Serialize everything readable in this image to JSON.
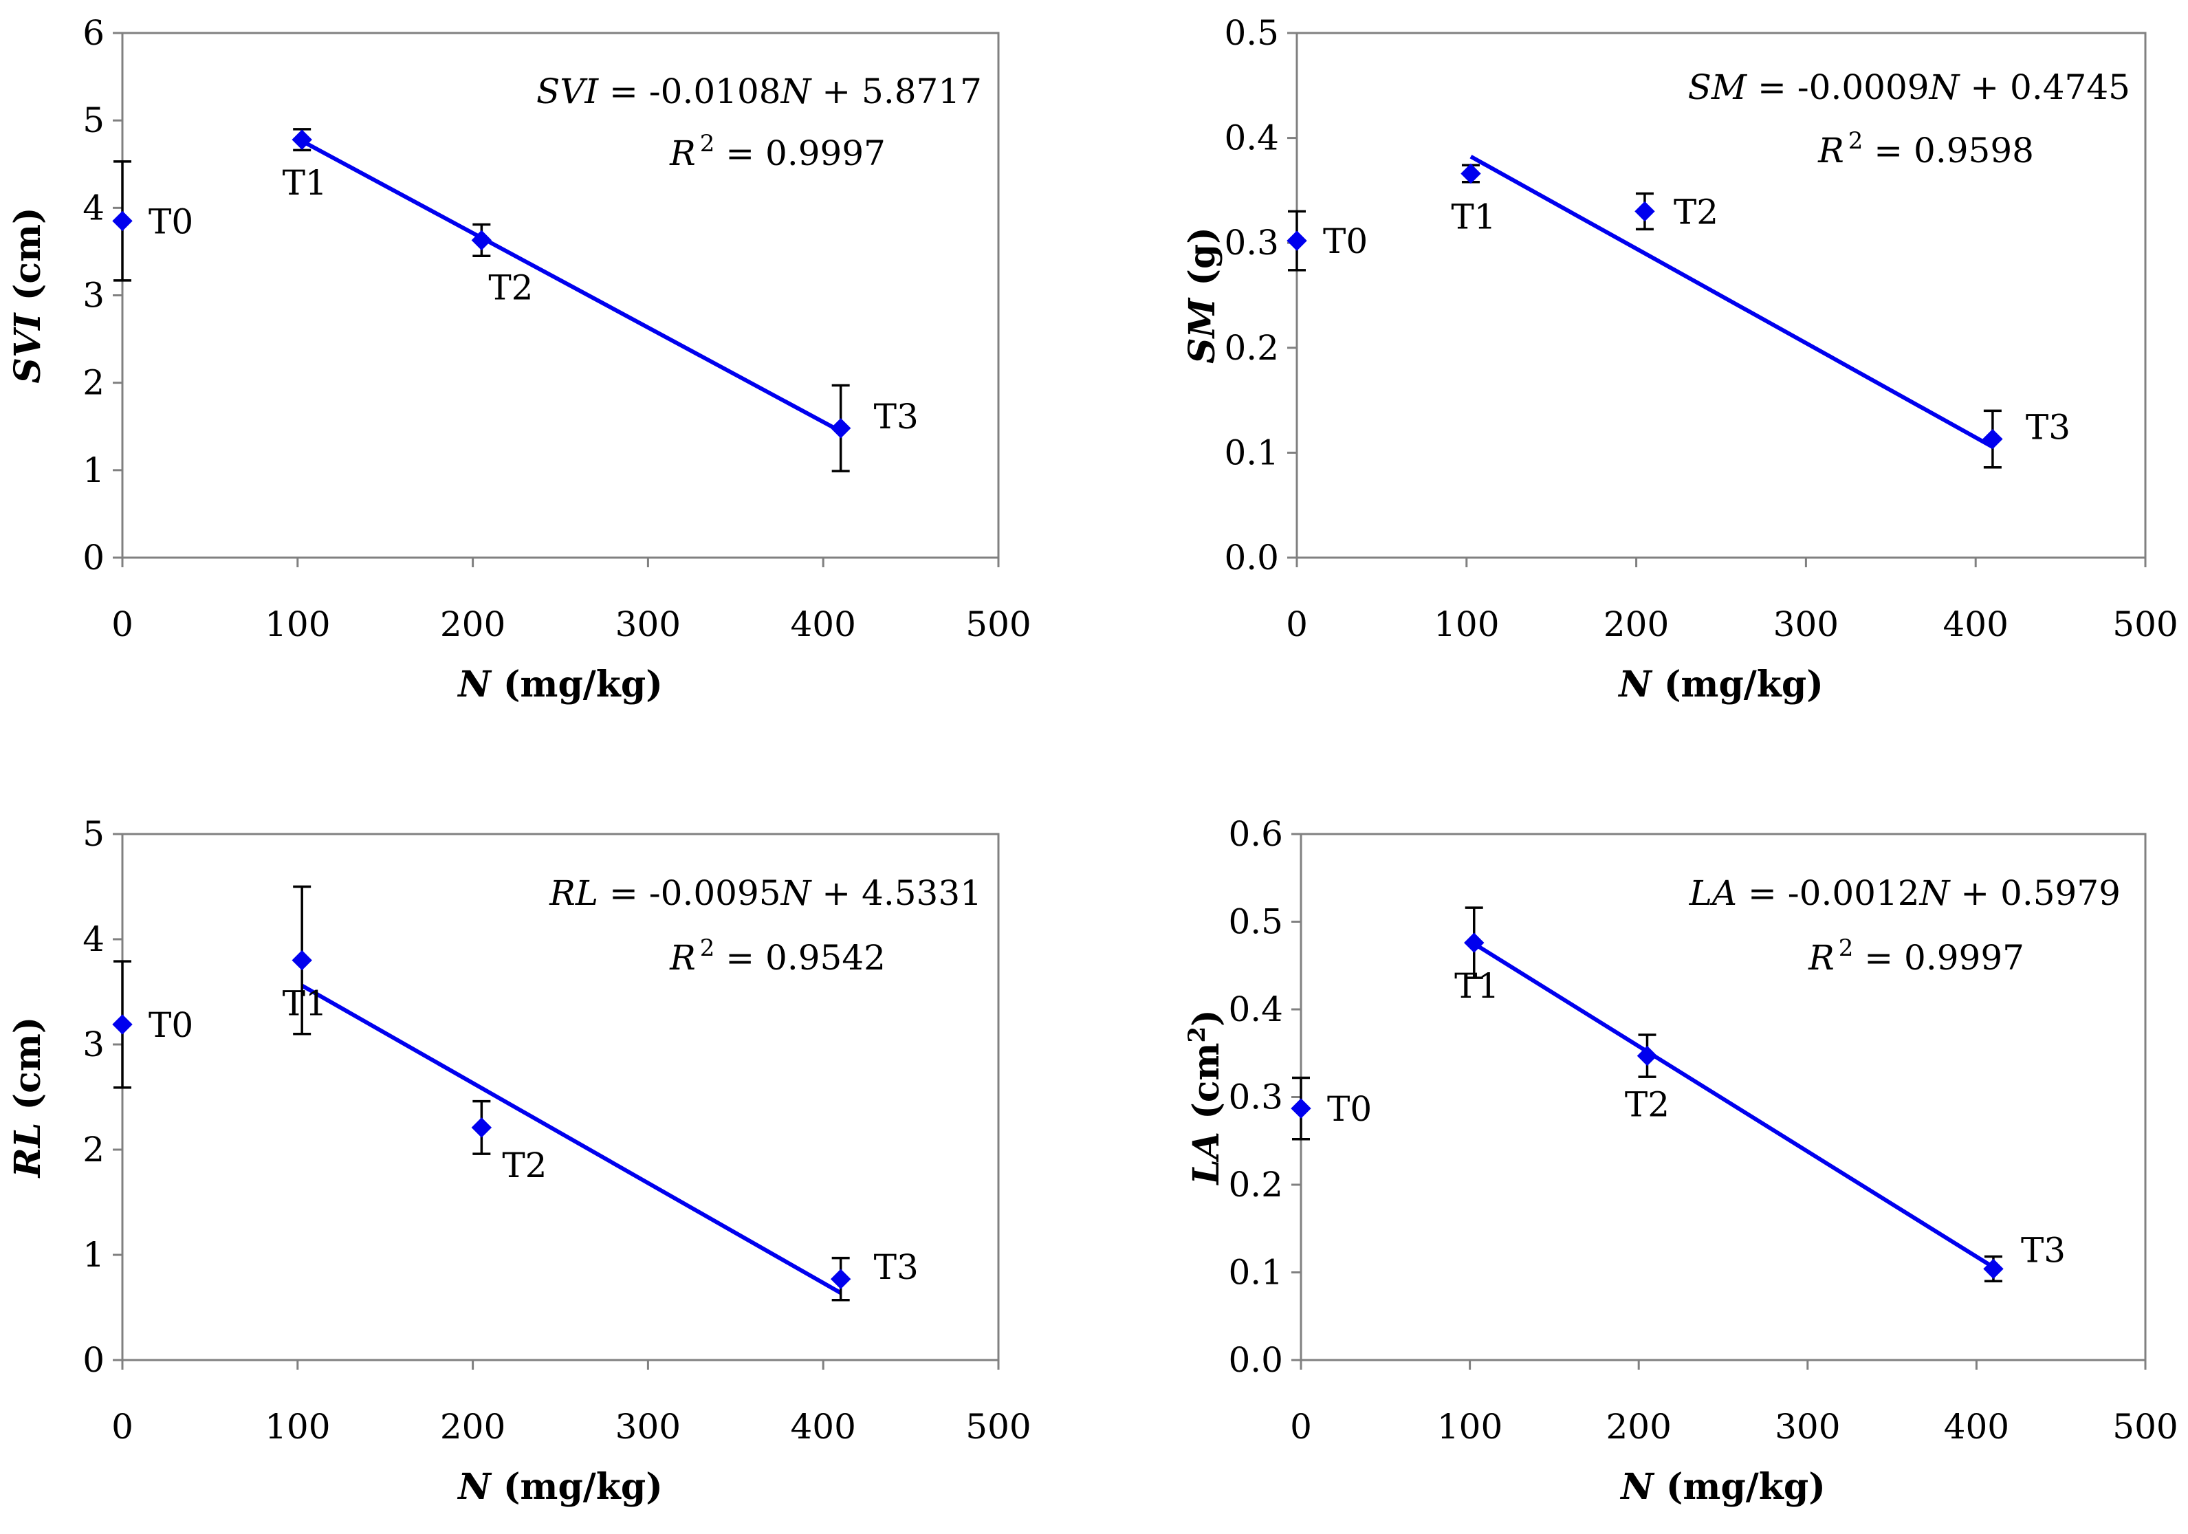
{
  "chart_data": [
    {
      "type": "scatter",
      "id": "svi",
      "ylabel_var": "SVI",
      "ylabel_unit": " (cm)",
      "xlabel_var": "N",
      "xlabel_unit": "  (mg/kg)",
      "xlim": [
        0,
        500
      ],
      "ylim": [
        0,
        6
      ],
      "x_ticks": [
        0,
        100,
        200,
        300,
        400,
        500
      ],
      "x_tick_labels": [
        "0",
        "100",
        "200",
        "300",
        "400",
        "500"
      ],
      "y_ticks": [
        0,
        1,
        2,
        3,
        4,
        5,
        6
      ],
      "y_tick_labels": [
        "0",
        "1",
        "2",
        "3",
        "4",
        "5",
        "6"
      ],
      "points": [
        {
          "label": "T0",
          "x": 0,
          "y": 3.85,
          "err": 0.68
        },
        {
          "label": "T1",
          "x": 102.5,
          "y": 4.78,
          "err": 0.12
        },
        {
          "label": "T2",
          "x": 205,
          "y": 3.63,
          "err": 0.18
        },
        {
          "label": "T3",
          "x": 410,
          "y": 1.48,
          "err": 0.49
        }
      ],
      "fit": {
        "slope": -0.0108,
        "intercept": 5.8717,
        "x_range": [
          102.5,
          410
        ]
      },
      "equation": {
        "var": "SVI",
        "rhs_pre": " = -0.0108",
        "rhs_var": "N",
        "rhs_post": " + 5.8717"
      },
      "r2": {
        "var": "R",
        "sup": "2",
        "value": " = 0.9997"
      }
    },
    {
      "type": "scatter",
      "id": "sm",
      "ylabel_var": "SM",
      "ylabel_unit": " (g)",
      "xlabel_var": "N",
      "xlabel_unit": "  (mg/kg)",
      "xlim": [
        0,
        500
      ],
      "ylim": [
        0,
        0.5
      ],
      "x_ticks": [
        0,
        100,
        200,
        300,
        400,
        500
      ],
      "x_tick_labels": [
        "0",
        "100",
        "200",
        "300",
        "400",
        "500"
      ],
      "y_ticks": [
        0,
        0.1,
        0.2,
        0.3,
        0.4,
        0.5
      ],
      "y_tick_labels": [
        "0.0",
        "0.1",
        "0.2",
        "0.3",
        "0.4",
        "0.5"
      ],
      "points": [
        {
          "label": "T0",
          "x": 0,
          "y": 0.302,
          "err": 0.028
        },
        {
          "label": "T1",
          "x": 102.5,
          "y": 0.366,
          "err": 0.008
        },
        {
          "label": "T2",
          "x": 205,
          "y": 0.33,
          "err": 0.017
        },
        {
          "label": "T3",
          "x": 410,
          "y": 0.113,
          "err": 0.027
        }
      ],
      "fit": {
        "slope": -0.0009,
        "intercept": 0.4745,
        "x_range": [
          102.5,
          410
        ]
      },
      "equation": {
        "var": "SM",
        "rhs_pre": " = -0.0009",
        "rhs_var": "N",
        "rhs_post": " + 0.4745"
      },
      "r2": {
        "var": "R",
        "sup": "2",
        "value": " = 0.9598"
      }
    },
    {
      "type": "scatter",
      "id": "rl",
      "ylabel_var": "RL",
      "ylabel_unit": " (cm)",
      "xlabel_var": "N",
      "xlabel_unit": "  (mg/kg)",
      "xlim": [
        0,
        500
      ],
      "ylim": [
        0,
        5
      ],
      "x_ticks": [
        0,
        100,
        200,
        300,
        400,
        500
      ],
      "x_tick_labels": [
        "0",
        "100",
        "200",
        "300",
        "400",
        "500"
      ],
      "y_ticks": [
        0,
        1,
        2,
        3,
        4,
        5
      ],
      "y_tick_labels": [
        "0",
        "1",
        "2",
        "3",
        "4",
        "5"
      ],
      "points": [
        {
          "label": "T0",
          "x": 0,
          "y": 3.19,
          "err": 0.6
        },
        {
          "label": "T1",
          "x": 102.5,
          "y": 3.8,
          "err": 0.7
        },
        {
          "label": "T2",
          "x": 205,
          "y": 2.21,
          "err": 0.25
        },
        {
          "label": "T3",
          "x": 410,
          "y": 0.77,
          "err": 0.2
        }
      ],
      "fit": {
        "slope": -0.0095,
        "intercept": 4.5331,
        "x_range": [
          102.5,
          410
        ]
      },
      "equation": {
        "var": "RL",
        "rhs_pre": " = -0.0095",
        "rhs_var": "N",
        "rhs_post": " + 4.5331"
      },
      "r2": {
        "var": "R",
        "sup": "2",
        "value": " = 0.9542"
      }
    },
    {
      "type": "scatter",
      "id": "la",
      "ylabel_var": "LA",
      "ylabel_unit": " (cm",
      "ylabel_sup": "2",
      "ylabel_close": ")",
      "xlabel_var": "N",
      "xlabel_unit": "  (mg/kg)",
      "xlim": [
        0,
        500
      ],
      "ylim": [
        0,
        0.6
      ],
      "x_ticks": [
        0,
        100,
        200,
        300,
        400,
        500
      ],
      "x_tick_labels": [
        "0",
        "100",
        "200",
        "300",
        "400",
        "500"
      ],
      "y_ticks": [
        0,
        0.1,
        0.2,
        0.3,
        0.4,
        0.5,
        0.6
      ],
      "y_tick_labels": [
        "0.0",
        "0.1",
        "0.2",
        "0.3",
        "0.4",
        "0.5",
        "0.6"
      ],
      "points": [
        {
          "label": "T0",
          "x": 0,
          "y": 0.287,
          "err": 0.035
        },
        {
          "label": "T1",
          "x": 102.5,
          "y": 0.476,
          "err": 0.04
        },
        {
          "label": "T2",
          "x": 205,
          "y": 0.347,
          "err": 0.024
        },
        {
          "label": "T3",
          "x": 410,
          "y": 0.104,
          "err": 0.014
        }
      ],
      "fit": {
        "slope": -0.0012,
        "intercept": 0.5979,
        "x_range": [
          102.5,
          410
        ]
      },
      "equation": {
        "var": "LA",
        "rhs_pre": " = -0.0012",
        "rhs_var": "N",
        "rhs_post": " + 0.5979"
      },
      "r2": {
        "var": "R",
        "sup": "2",
        "value": " = 0.9997"
      }
    }
  ],
  "colors": {
    "series": "#0000EE",
    "axis": "#808080",
    "error_bar": "#000000"
  }
}
